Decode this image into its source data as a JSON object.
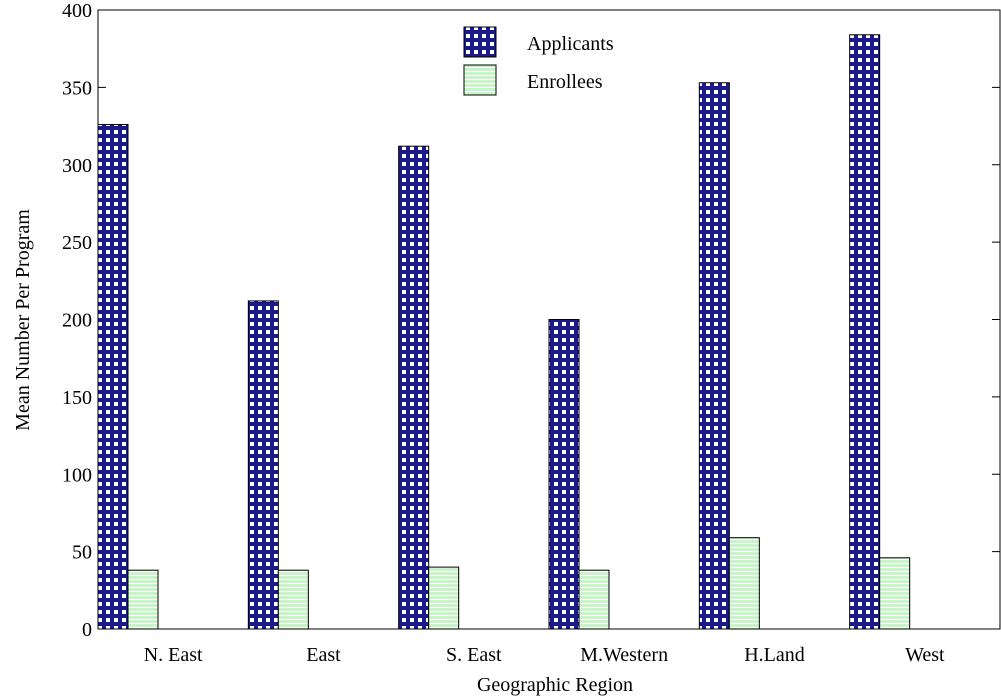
{
  "chart_data": {
    "type": "bar",
    "xlabel": "Geographic Region",
    "ylabel": "Mean Number Per Program",
    "categories": [
      "N. East",
      "East",
      "S. East",
      "M.Western",
      "H.Land",
      "West"
    ],
    "series": [
      {
        "name": "Applicants",
        "values": [
          326,
          212,
          312,
          200,
          353,
          384
        ],
        "color": "#1a1a8c",
        "pattern": "grid"
      },
      {
        "name": "Enrollees",
        "values": [
          38,
          38,
          40,
          38,
          59,
          46
        ],
        "color": "#c8f5c8",
        "pattern": "horizontal-lines"
      }
    ],
    "ylim": [
      0,
      400
    ],
    "yticks": [
      "0",
      "50",
      "100",
      "150",
      "200",
      "250",
      "300",
      "350",
      "400"
    ],
    "grid": false,
    "legend_placement": "top-center"
  }
}
